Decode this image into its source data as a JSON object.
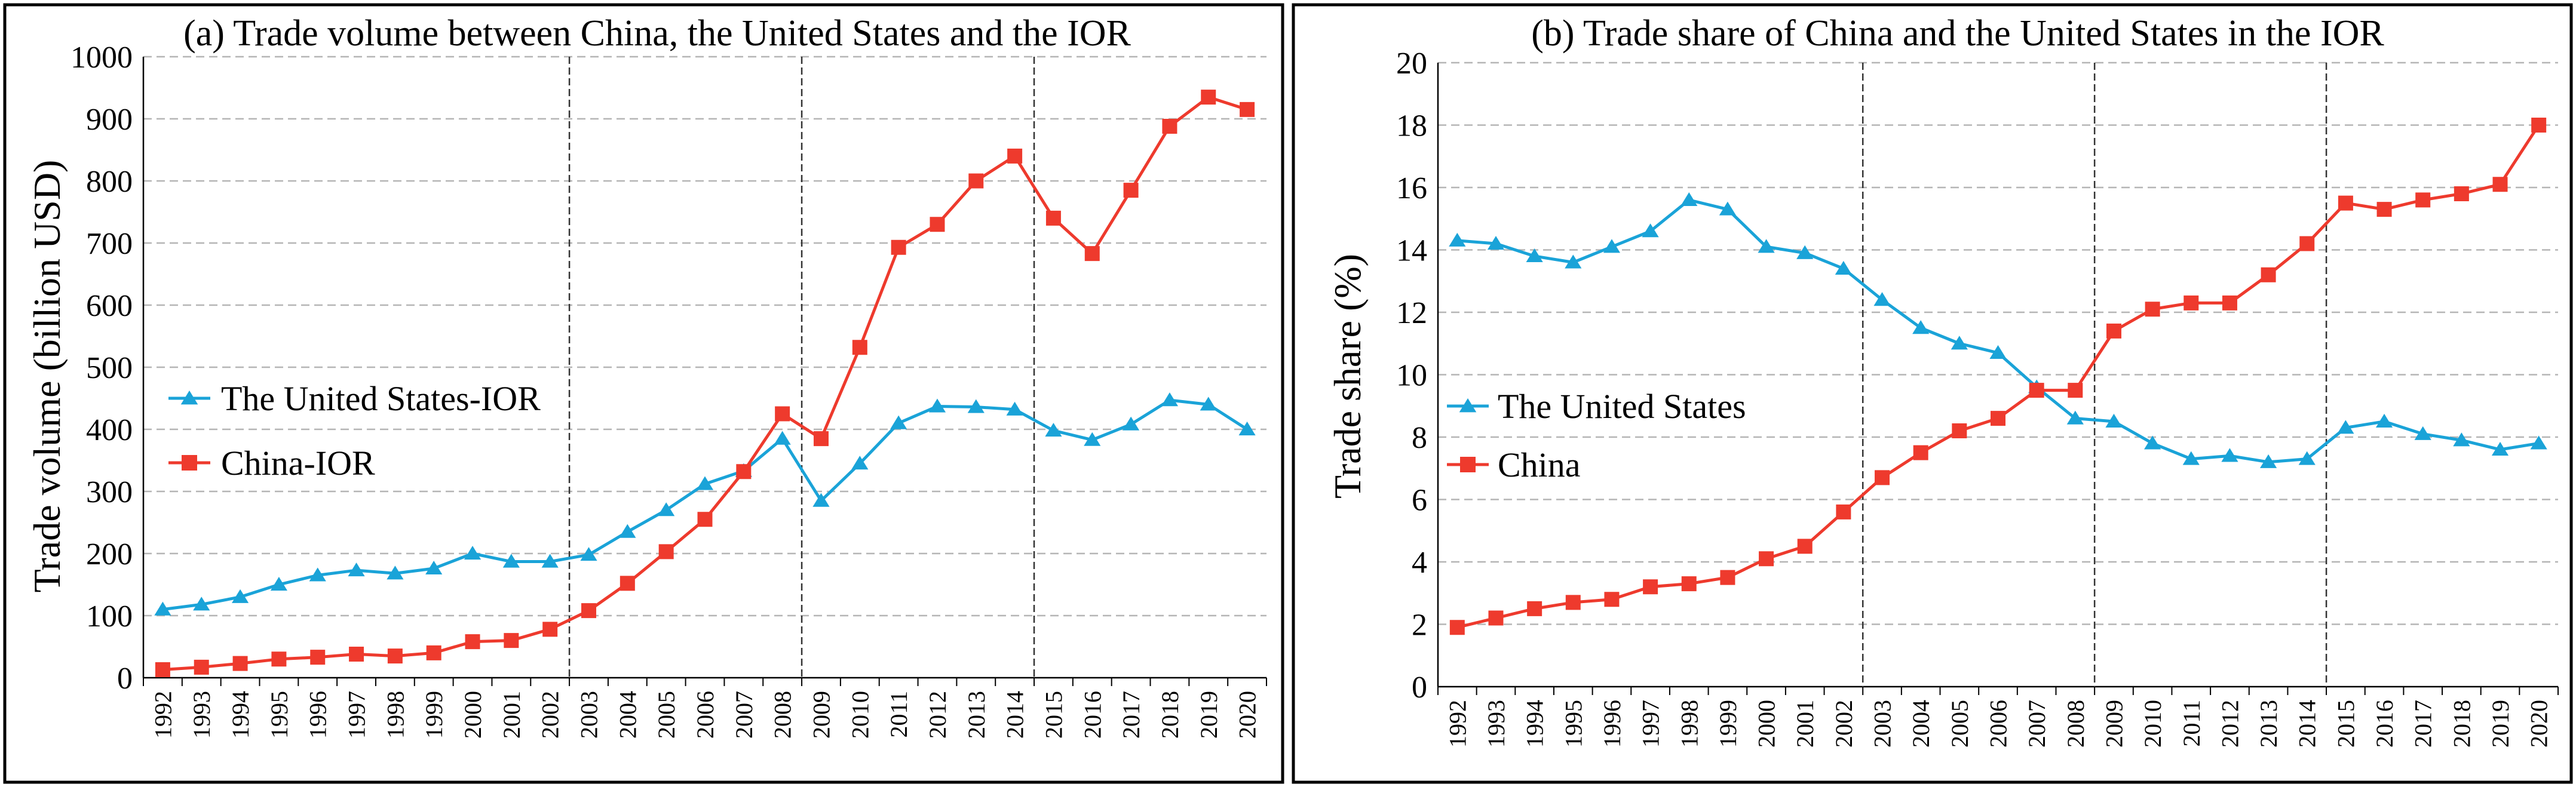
{
  "charts": [
    {
      "id": "a",
      "type": "line",
      "title": "(a) Trade volume between China, the United States and the IOR",
      "ylabel": "Trade volume (billion USD)",
      "xlabel": "",
      "ylim": [
        0,
        1000
      ],
      "yticks": [
        0,
        100,
        200,
        300,
        400,
        500,
        600,
        700,
        800,
        900,
        1000
      ],
      "grid": true,
      "legend": "middle-left",
      "vlines_after_years": [
        2002,
        2008,
        2014
      ],
      "categories": [
        "1992",
        "1993",
        "1994",
        "1995",
        "1996",
        "1997",
        "1998",
        "1999",
        "2000",
        "2001",
        "2002",
        "2003",
        "2004",
        "2005",
        "2006",
        "2007",
        "2008",
        "2009",
        "2010",
        "2011",
        "2012",
        "2013",
        "2014",
        "2015",
        "2016",
        "2017",
        "2018",
        "2019",
        "2020"
      ],
      "series": [
        {
          "name": "The United States-IOR",
          "marker": "triangle",
          "color": "#1AA3D8",
          "values": [
            110,
            118,
            130,
            150,
            165,
            173,
            168,
            176,
            200,
            187,
            187,
            198,
            235,
            270,
            312,
            333,
            385,
            285,
            345,
            410,
            437,
            436,
            432,
            398,
            383,
            408,
            447,
            440,
            400
          ]
        },
        {
          "name": "China-IOR",
          "marker": "square",
          "color": "#EE3A2D",
          "values": [
            13,
            17,
            23,
            30,
            33,
            38,
            35,
            40,
            58,
            60,
            78,
            108,
            152,
            203,
            255,
            332,
            425,
            385,
            532,
            693,
            730,
            800,
            840,
            740,
            683,
            785,
            888,
            935,
            915
          ]
        }
      ]
    },
    {
      "id": "b",
      "type": "line",
      "title": "(b) Trade share of China and the United States in the IOR",
      "ylabel": "Trade share (%)",
      "xlabel": "",
      "ylim": [
        0,
        20
      ],
      "yticks": [
        0,
        2,
        4,
        6,
        8,
        10,
        12,
        14,
        16,
        18,
        20
      ],
      "grid": true,
      "legend": "middle-left",
      "vlines_after_years": [
        2002,
        2008,
        2014
      ],
      "categories": [
        "1992",
        "1993",
        "1994",
        "1995",
        "1996",
        "1997",
        "1998",
        "1999",
        "2000",
        "2001",
        "2002",
        "2003",
        "2004",
        "2005",
        "2006",
        "2007",
        "2008",
        "2009",
        "2010",
        "2011",
        "2012",
        "2013",
        "2014",
        "2015",
        "2016",
        "2017",
        "2018",
        "2019",
        "2020"
      ],
      "series": [
        {
          "name": "The United States",
          "marker": "triangle",
          "color": "#1AA3D8",
          "values": [
            14.3,
            14.2,
            13.8,
            13.6,
            14.1,
            14.6,
            15.6,
            15.3,
            14.1,
            13.9,
            13.4,
            12.4,
            11.5,
            11.0,
            10.7,
            9.6,
            8.6,
            8.5,
            7.8,
            7.3,
            7.4,
            7.2,
            7.3,
            8.3,
            8.5,
            8.1,
            7.9,
            7.6,
            7.8
          ]
        },
        {
          "name": "China",
          "marker": "square",
          "color": "#EE3A2D",
          "values": [
            1.9,
            2.2,
            2.5,
            2.7,
            2.8,
            3.2,
            3.3,
            3.5,
            4.1,
            4.5,
            5.6,
            6.7,
            7.5,
            8.2,
            8.6,
            9.5,
            9.5,
            11.4,
            12.1,
            12.3,
            12.3,
            13.2,
            14.2,
            15.5,
            15.3,
            15.6,
            15.8,
            16.1,
            18.0
          ]
        }
      ]
    }
  ]
}
